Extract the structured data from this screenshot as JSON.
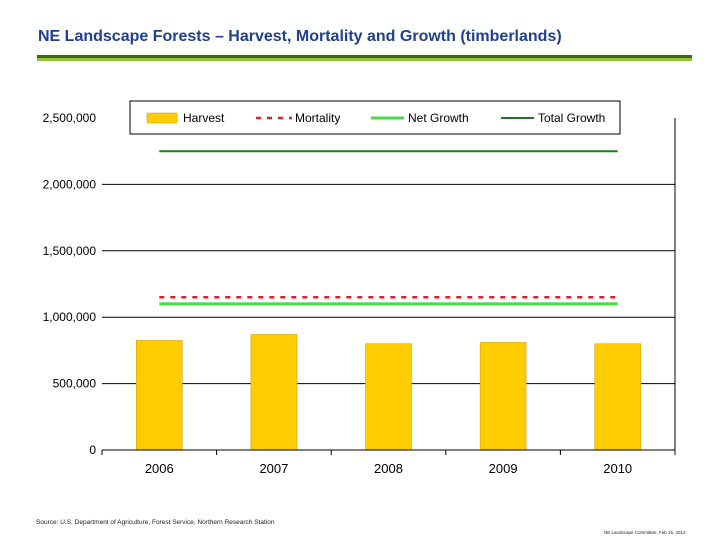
{
  "slide": {
    "title": "NE Landscape Forests – Harvest, Mortality and Growth (timberlands)",
    "source": "Source: U.S. Department of Agriculture, Forest Service, Northern Research Station",
    "footer": "NE Landscape Committee, Feb 15, 2012"
  },
  "colors": {
    "title": "#1f3f8f",
    "harvest": "#ffcc00",
    "mortality": "#e0202a",
    "net_growth": "#44dd44",
    "total_growth": "#1f7a1f",
    "gridline": "#000000"
  },
  "chart_data": {
    "type": "bar",
    "categories": [
      "2006",
      "2007",
      "2008",
      "2009",
      "2010"
    ],
    "series": [
      {
        "name": "Harvest",
        "type": "bar",
        "values": [
          825000,
          870000,
          800000,
          810000,
          800000
        ]
      },
      {
        "name": "Mortality",
        "type": "line",
        "style": "dashed",
        "values": [
          1150000,
          1150000,
          1150000,
          1150000,
          1150000
        ]
      },
      {
        "name": "Net Growth",
        "type": "line",
        "values": [
          1100000,
          1100000,
          1100000,
          1100000,
          1100000
        ]
      },
      {
        "name": "Total Growth",
        "type": "line",
        "values": [
          2250000,
          2250000,
          2250000,
          2250000,
          2250000
        ]
      }
    ],
    "yticks": [
      "2,500,000",
      "2,000,000",
      "1,500,000",
      "1,000,000",
      "500,000",
      "0"
    ],
    "ylim": [
      0,
      2500000
    ],
    "grid": true,
    "legend_position": "top"
  }
}
